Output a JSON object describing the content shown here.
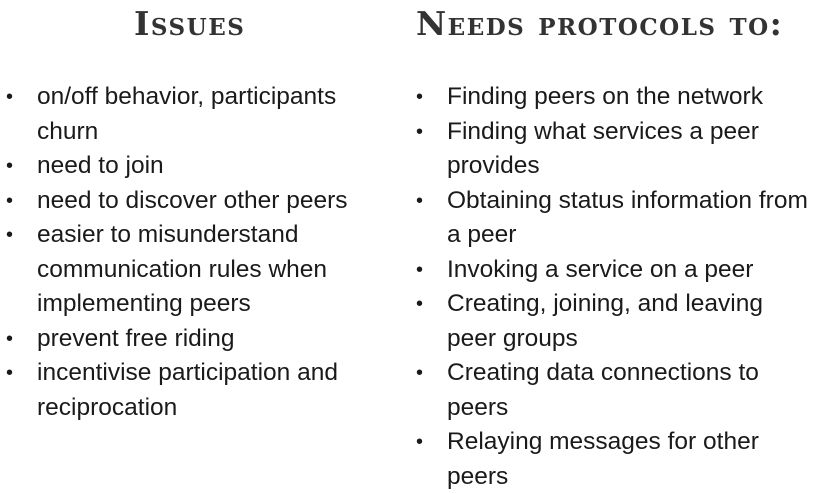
{
  "issues": {
    "heading": "Issues",
    "items": [
      "on/off behavior, participants churn",
      "need to join",
      "need to discover other peers",
      "easier to misunderstand communication rules when implementing peers",
      "prevent free riding",
      "incentivise participation and reciprocation"
    ]
  },
  "protocols": {
    "heading": "Needs protocols to:",
    "items": [
      "Finding peers on the network",
      "Finding what services a peer provides",
      "Obtaining status information from a peer",
      "Invoking a service on a peer",
      "Creating, joining, and leaving peer groups",
      "Creating data connections to peers",
      "Relaying messages for other peers"
    ]
  },
  "bullet_glyph": "•"
}
